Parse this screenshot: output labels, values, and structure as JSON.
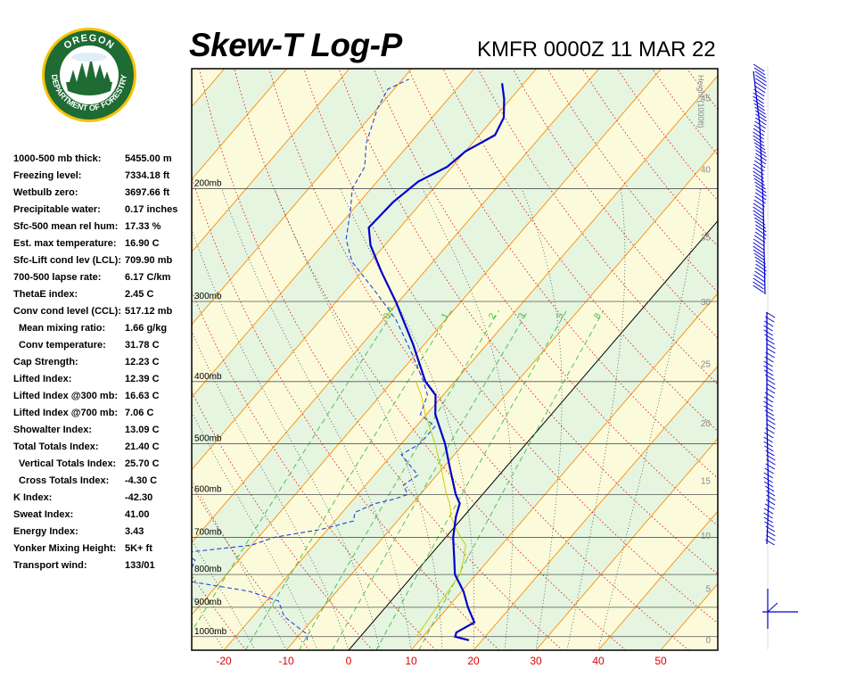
{
  "header": {
    "title": "Skew-T Log-P",
    "station": "KMFR 0000Z 11 MAR 22"
  },
  "logo": {
    "top_text": "OREGON",
    "bottom_text": "DEPARTMENT OF FORESTRY"
  },
  "indices": [
    {
      "label": "1000-500 mb thick:",
      "value": "5455.00 m",
      "sub": false
    },
    {
      "label": "Freezing level:",
      "value": "7334.18 ft",
      "sub": false
    },
    {
      "label": "Wetbulb zero:",
      "value": "3697.66 ft",
      "sub": false
    },
    {
      "label": "Precipitable water:",
      "value": "0.17 inches",
      "sub": false
    },
    {
      "label": "Sfc-500 mean rel hum:",
      "value": "17.33 %",
      "sub": false
    },
    {
      "label": "Est. max temperature:",
      "value": "16.90 C",
      "sub": false
    },
    {
      "label": "Sfc-Lift cond lev (LCL):",
      "value": "709.90 mb",
      "sub": false
    },
    {
      "label": "700-500 lapse rate:",
      "value": "6.17 C/km",
      "sub": false
    },
    {
      "label": "ThetaE index:",
      "value": "2.45 C",
      "sub": false
    },
    {
      "label": "Conv cond level (CCL):",
      "value": "517.12 mb",
      "sub": false
    },
    {
      "label": "Mean mixing ratio:",
      "value": "1.66 g/kg",
      "sub": true
    },
    {
      "label": "Conv temperature:",
      "value": "31.78 C",
      "sub": true
    },
    {
      "label": "Cap Strength:",
      "value": "12.23 C",
      "sub": false
    },
    {
      "label": "Lifted Index:",
      "value": "12.39 C",
      "sub": false
    },
    {
      "label": "Lifted Index @300 mb:",
      "value": "16.63 C",
      "sub": false
    },
    {
      "label": "Lifted Index @700 mb:",
      "value": "7.06 C",
      "sub": false
    },
    {
      "label": "Showalter Index:",
      "value": "13.09 C",
      "sub": false
    },
    {
      "label": "Total Totals Index:",
      "value": "21.40 C",
      "sub": false
    },
    {
      "label": "Vertical Totals Index:",
      "value": "25.70 C",
      "sub": true
    },
    {
      "label": "Cross Totals Index:",
      "value": "-4.30 C",
      "sub": true
    },
    {
      "label": "K Index:",
      "value": "-42.30",
      "sub": false
    },
    {
      "label": "Sweat Index:",
      "value": "41.00",
      "sub": false
    },
    {
      "label": "Energy Index:",
      "value": "3.43",
      "sub": false
    },
    {
      "label": "Yonker Mixing Height:",
      "value": "5K+ ft",
      "sub": false
    },
    {
      "label": "Transport wind:",
      "value": "133/01",
      "sub": false
    }
  ],
  "chart_data": {
    "type": "line",
    "xlim": [
      -25,
      60
    ],
    "ylim_mb": [
      1050,
      130
    ],
    "x_ticks": [
      -20,
      -10,
      0,
      10,
      20,
      30,
      40,
      50
    ],
    "pressure_labels": [
      {
        "p": 1000,
        "label": "1000mb"
      },
      {
        "p": 900,
        "label": "900mb"
      },
      {
        "p": 800,
        "label": "800mb"
      },
      {
        "p": 700,
        "label": "700mb"
      },
      {
        "p": 600,
        "label": "600mb"
      },
      {
        "p": 500,
        "label": "500mb"
      },
      {
        "p": 400,
        "label": "400mb"
      },
      {
        "p": 300,
        "label": "300mb"
      },
      {
        "p": 200,
        "label": "200mb"
      }
    ],
    "height_axis_label": "Height (1000ft)",
    "height_ticks": [
      0,
      5,
      10,
      15,
      20,
      25,
      30,
      35,
      40,
      45,
      50
    ],
    "mixing_ratio_labels": [
      {
        "w": 0.4,
        "label": "0.4"
      },
      {
        "w": 1,
        "label": "1"
      },
      {
        "w": 2,
        "label": "2"
      },
      {
        "w": 3,
        "label": "3"
      },
      {
        "w": 5,
        "label": "5"
      },
      {
        "w": 8,
        "label": "8"
      }
    ],
    "temperature": [
      {
        "p": 1013,
        "t": 17.9
      },
      {
        "p": 1000,
        "t": 15.2
      },
      {
        "p": 985,
        "t": 14.8
      },
      {
        "p": 950,
        "t": 16.3
      },
      {
        "p": 900,
        "t": 13.2
      },
      {
        "p": 850,
        "t": 10.3
      },
      {
        "p": 800,
        "t": 6.6
      },
      {
        "p": 750,
        "t": 4.0
      },
      {
        "p": 700,
        "t": 1.2
      },
      {
        "p": 650,
        "t": -1.2
      },
      {
        "p": 620,
        "t": -2.4
      },
      {
        "p": 600,
        "t": -4.3
      },
      {
        "p": 550,
        "t": -8.5
      },
      {
        "p": 500,
        "t": -13.0
      },
      {
        "p": 450,
        "t": -18.6
      },
      {
        "p": 420,
        "t": -21.2
      },
      {
        "p": 400,
        "t": -24.7
      },
      {
        "p": 350,
        "t": -31.8
      },
      {
        "p": 300,
        "t": -40.5
      },
      {
        "p": 270,
        "t": -46.8
      },
      {
        "p": 245,
        "t": -52.3
      },
      {
        "p": 230,
        "t": -55.0
      },
      {
        "p": 210,
        "t": -54.6
      },
      {
        "p": 195,
        "t": -53.4
      },
      {
        "p": 185,
        "t": -50.8
      },
      {
        "p": 175,
        "t": -50.0
      },
      {
        "p": 165,
        "t": -47.5
      },
      {
        "p": 155,
        "t": -48.5
      },
      {
        "p": 145,
        "t": -51.0
      },
      {
        "p": 137,
        "t": -53.5
      }
    ],
    "dewpoint": [
      {
        "p": 1013,
        "t": -8.0
      },
      {
        "p": 990,
        "t": -9.0
      },
      {
        "p": 960,
        "t": -12.0
      },
      {
        "p": 930,
        "t": -15.0
      },
      {
        "p": 880,
        "t": -18.0
      },
      {
        "p": 850,
        "t": -24.0
      },
      {
        "p": 820,
        "t": -35.0
      },
      {
        "p": 800,
        "t": -36.0
      },
      {
        "p": 760,
        "t": -37.0
      },
      {
        "p": 740,
        "t": -40.0
      },
      {
        "p": 720,
        "t": -30.0
      },
      {
        "p": 700,
        "t": -27.5
      },
      {
        "p": 680,
        "t": -21.0
      },
      {
        "p": 660,
        "t": -17.0
      },
      {
        "p": 640,
        "t": -18.0
      },
      {
        "p": 620,
        "t": -16.0
      },
      {
        "p": 610,
        "t": -13.5
      },
      {
        "p": 600,
        "t": -12.0
      },
      {
        "p": 580,
        "t": -14.0
      },
      {
        "p": 560,
        "t": -13.0
      },
      {
        "p": 520,
        "t": -18.5
      },
      {
        "p": 500,
        "t": -17.0
      },
      {
        "p": 470,
        "t": -17.0
      },
      {
        "p": 450,
        "t": -21.0
      },
      {
        "p": 420,
        "t": -22.5
      },
      {
        "p": 400,
        "t": -25.0
      },
      {
        "p": 360,
        "t": -31.0
      },
      {
        "p": 320,
        "t": -38.0
      },
      {
        "p": 290,
        "t": -45.0
      },
      {
        "p": 260,
        "t": -53.0
      },
      {
        "p": 240,
        "t": -57.0
      },
      {
        "p": 215,
        "t": -60.5
      },
      {
        "p": 200,
        "t": -63.0
      },
      {
        "p": 185,
        "t": -64.0
      },
      {
        "p": 170,
        "t": -67.0
      },
      {
        "p": 150,
        "t": -70.0
      },
      {
        "p": 140,
        "t": -71.0
      },
      {
        "p": 135,
        "t": -69.0
      }
    ],
    "parcel_trace": [
      {
        "p": 1000,
        "t": 9.0
      },
      {
        "p": 950,
        "t": 8.6
      },
      {
        "p": 900,
        "t": 8.2
      },
      {
        "p": 850,
        "t": 7.8
      },
      {
        "p": 800,
        "t": 7.4
      },
      {
        "p": 760,
        "t": 6.0
      },
      {
        "p": 720,
        "t": 4.3
      },
      {
        "p": 690,
        "t": 1.5
      },
      {
        "p": 650,
        "t": -2.0
      },
      {
        "p": 620,
        "t": -4.0
      },
      {
        "p": 600,
        "t": -5.8
      },
      {
        "p": 550,
        "t": -9.9
      },
      {
        "p": 500,
        "t": -14.6
      },
      {
        "p": 450,
        "t": -20.2
      },
      {
        "p": 420,
        "t": -23.5
      },
      {
        "p": 400,
        "t": -26.2
      }
    ],
    "colors": {
      "temperature": "#0000cc",
      "dewpoint": "#2244dd",
      "parcel": "#cccc00",
      "isotherm": "#ff8c00",
      "dry_adiabat": "#dd2222",
      "moist_adiabat": "#333333",
      "mixing_ratio": "#44bb44",
      "band_green": "#e5f5e0",
      "band_yellow": "#fbfbdc",
      "x_tick_labels": "#dd0000"
    },
    "wind_barbs": "present"
  }
}
